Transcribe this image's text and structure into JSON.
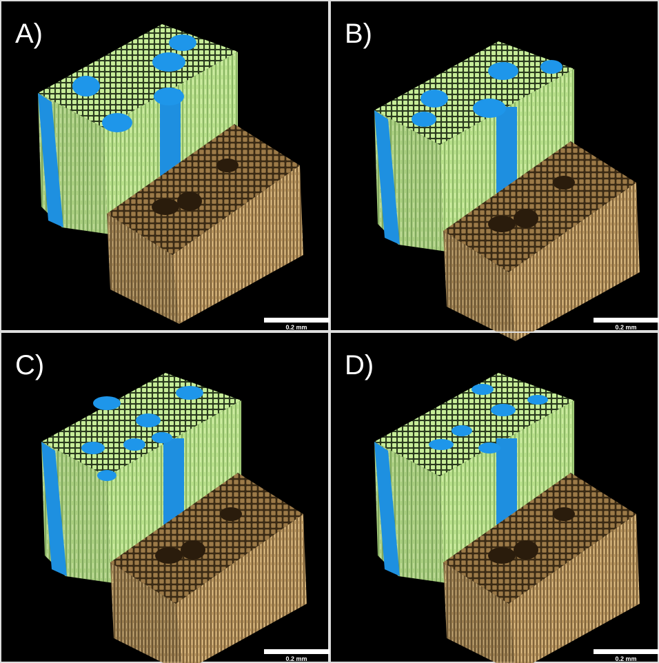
{
  "panels": [
    {
      "label": "A)",
      "scale_bar": "0.2 mm"
    },
    {
      "label": "B)",
      "scale_bar": "0.2 mm"
    },
    {
      "label": "C)",
      "scale_bar": "0.2 mm"
    },
    {
      "label": "D)",
      "scale_bar": "0.2 mm"
    }
  ]
}
